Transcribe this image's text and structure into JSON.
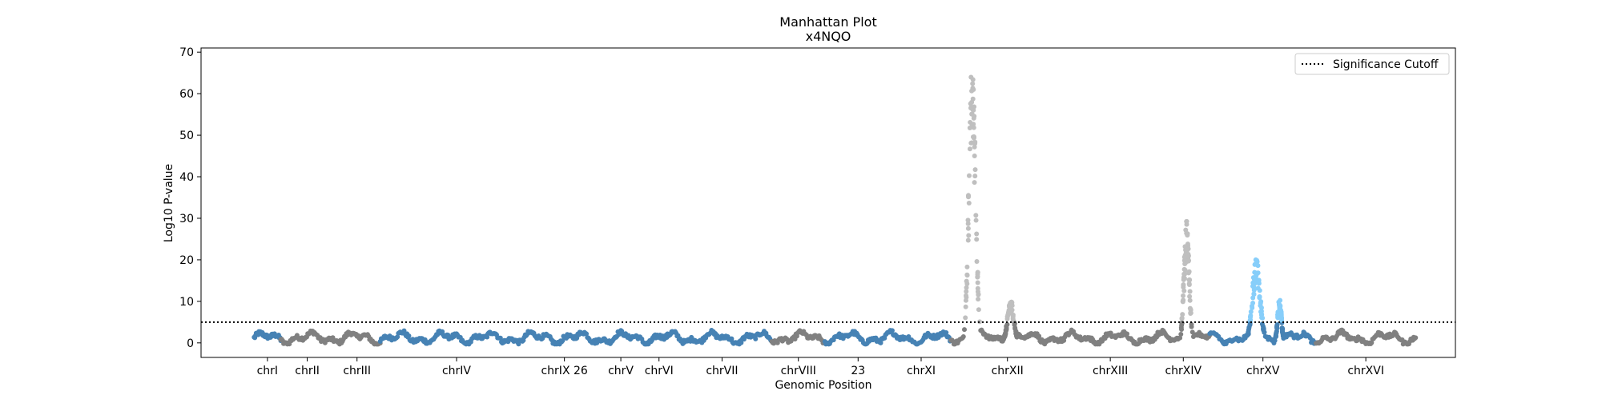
{
  "chart_data": {
    "type": "scatter",
    "title": "Manhattan Plot",
    "subtitle": "x4NQO",
    "xlabel": "Genomic Position",
    "ylabel": "Log10 P-value",
    "ylim": [
      -3.5,
      71
    ],
    "yticks": [
      0,
      10,
      20,
      30,
      40,
      50,
      60,
      70
    ],
    "grid": false,
    "legend": {
      "placement": "top-right",
      "entries": [
        "Significance Cutoff"
      ]
    },
    "significance_cutoff": 5,
    "colors": {
      "blue": "#4682b4",
      "gray": "#808080",
      "lightgray": "#bfbfbf",
      "lightblue": "#87cefa",
      "cutoff": "#000000"
    },
    "chromosomes": [
      {
        "label": "chrI",
        "start": 0.0,
        "end": 0.4,
        "color": "blue"
      },
      {
        "label": "chrII",
        "start": 0.4,
        "end": 1.2,
        "color": "gray"
      },
      {
        "label": "chrIII",
        "start": 1.2,
        "end": 1.9,
        "color": "gray"
      },
      {
        "label": "chrIV",
        "start": 1.9,
        "end": 4.2,
        "color": "blue"
      },
      {
        "label": "chrIX 26",
        "start": 4.2,
        "end": 5.15,
        "color": "blue"
      },
      {
        "label": "chrV",
        "start": 5.15,
        "end": 5.9,
        "color": "blue"
      },
      {
        "label": "chrVI",
        "start": 5.9,
        "end": 6.3,
        "color": "blue"
      },
      {
        "label": "chrVII",
        "start": 6.3,
        "end": 7.8,
        "color": "blue"
      },
      {
        "label": "chrVIII",
        "start": 7.8,
        "end": 8.6,
        "color": "gray"
      },
      {
        "label": "23",
        "start": 8.6,
        "end": 9.6,
        "color": "blue"
      },
      {
        "label": "chrXI",
        "start": 9.6,
        "end": 10.5,
        "color": "blue"
      },
      {
        "label": "chrXII",
        "start": 10.5,
        "end": 12.2,
        "color": "gray"
      },
      {
        "label": "chrXIII",
        "start": 12.2,
        "end": 13.6,
        "color": "gray"
      },
      {
        "label": "chrXIV",
        "start": 13.6,
        "end": 14.4,
        "color": "gray"
      },
      {
        "label": "chrXV",
        "start": 14.4,
        "end": 16.0,
        "color": "blue"
      },
      {
        "label": "chrXVI",
        "start": 16.0,
        "end": 17.5,
        "color": "gray"
      }
    ],
    "peaks": [
      {
        "center": 10.82,
        "width": 0.05,
        "height": 67,
        "chromosome": "chrXII"
      },
      {
        "center": 11.4,
        "width": 0.05,
        "height": 10,
        "chromosome": "chrXII"
      },
      {
        "center": 14.05,
        "width": 0.04,
        "height": 28,
        "chromosome": "chrXIV"
      },
      {
        "center": 15.1,
        "width": 0.06,
        "height": 19.5,
        "chromosome": "chrXV"
      },
      {
        "center": 15.45,
        "width": 0.03,
        "height": 10.5,
        "chromosome": "chrXV"
      }
    ],
    "xlim": [
      -0.8,
      18.1
    ]
  }
}
